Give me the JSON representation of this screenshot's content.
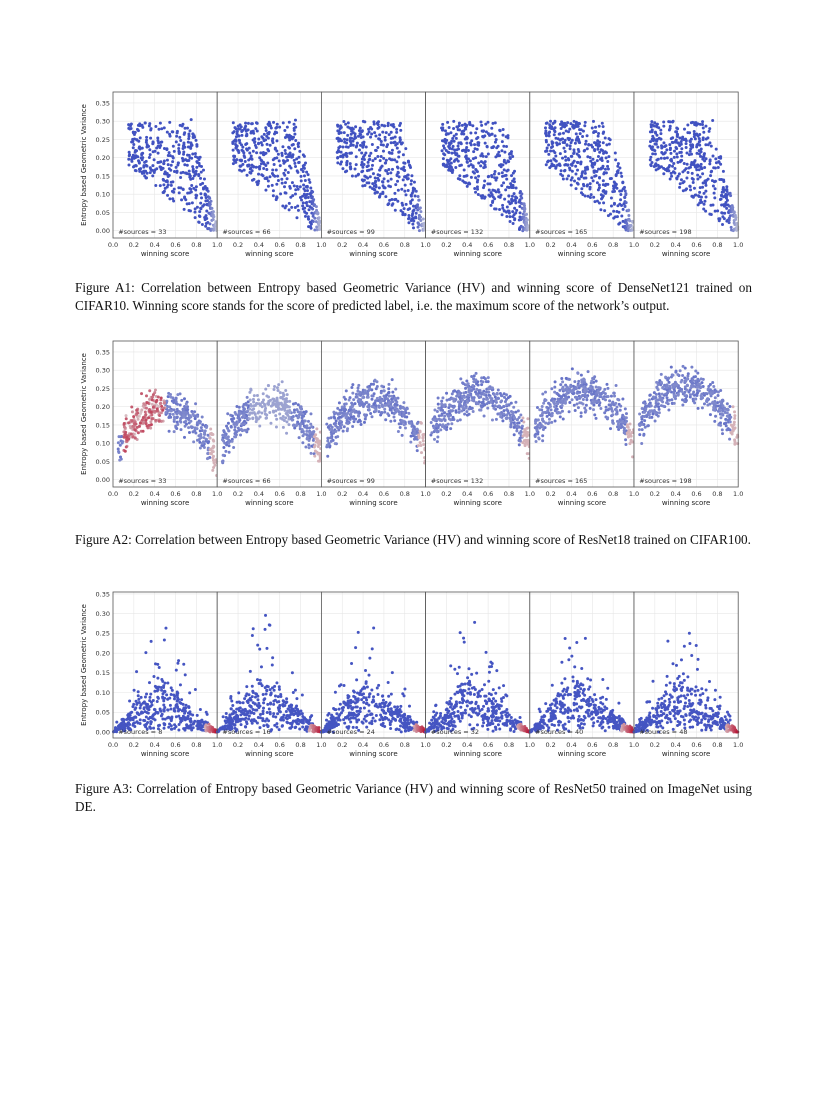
{
  "colors": {
    "low": "#3b4cc0",
    "mid": "#dddddd",
    "high": "#b40426"
  },
  "chart_data": [
    {
      "type": "scatter",
      "name": "A1",
      "ylabel": "Entropy based Geometric Variance",
      "xlabel": "winning score",
      "xlim": [
        0.0,
        1.0
      ],
      "ylim": [
        -0.02,
        0.38
      ],
      "xticks": [
        "0.0",
        "0.2",
        "0.4",
        "0.6",
        "0.8",
        "1.0"
      ],
      "yticks": [
        "0.00",
        "0.05",
        "0.10",
        "0.15",
        "0.20",
        "0.25",
        "0.30",
        "0.35"
      ],
      "shape": "cone",
      "panels": [
        "#sources = 33",
        "#sources = 66",
        "#sources = 99",
        "#sources = 132",
        "#sources = 165",
        "#sources = 198"
      ],
      "caption": "Figure A1: Correlation between Entropy based Geometric Variance (HV) and winning score of DenseNet121 trained on CIFAR10. Winning score stands for the score of predicted label, i.e. the maximum score of the network’s output."
    },
    {
      "type": "scatter",
      "name": "A2",
      "ylabel": "Entropy based Geometric Variance",
      "xlabel": "winning score",
      "xlim": [
        0.0,
        1.0
      ],
      "ylim": [
        -0.02,
        0.38
      ],
      "xticks": [
        "0.0",
        "0.2",
        "0.4",
        "0.6",
        "0.8",
        "1.0"
      ],
      "yticks": [
        "0.00",
        "0.05",
        "0.10",
        "0.15",
        "0.20",
        "0.25",
        "0.30",
        "0.35"
      ],
      "shape": "arch",
      "panels": [
        "#sources = 33",
        "#sources = 66",
        "#sources = 99",
        "#sources = 132",
        "#sources = 165",
        "#sources = 198"
      ],
      "caption": "Figure A2: Correlation between Entropy based Geometric Variance (HV) and winning score of ResNet18 trained on CIFAR100."
    },
    {
      "type": "scatter",
      "name": "A3",
      "ylabel": "Entropy based Geometric Variance",
      "xlabel": "winning score",
      "xlim": [
        0.0,
        1.0
      ],
      "ylim": [
        -0.015,
        0.355
      ],
      "xticks": [
        "0.0",
        "0.2",
        "0.4",
        "0.6",
        "0.8",
        "1.0"
      ],
      "yticks": [
        "0.00",
        "0.05",
        "0.10",
        "0.15",
        "0.20",
        "0.25",
        "0.30",
        "0.35"
      ],
      "shape": "triangle",
      "panels": [
        "#sources = 8",
        "#sources = 16",
        "#sources = 24",
        "#sources = 32",
        "#sources = 40",
        "#sources = 48"
      ],
      "caption": "Figure A3: Correlation of Entropy based Geometric Variance (HV) and winning score of ResNet50 trained on ImageNet using DE."
    }
  ]
}
